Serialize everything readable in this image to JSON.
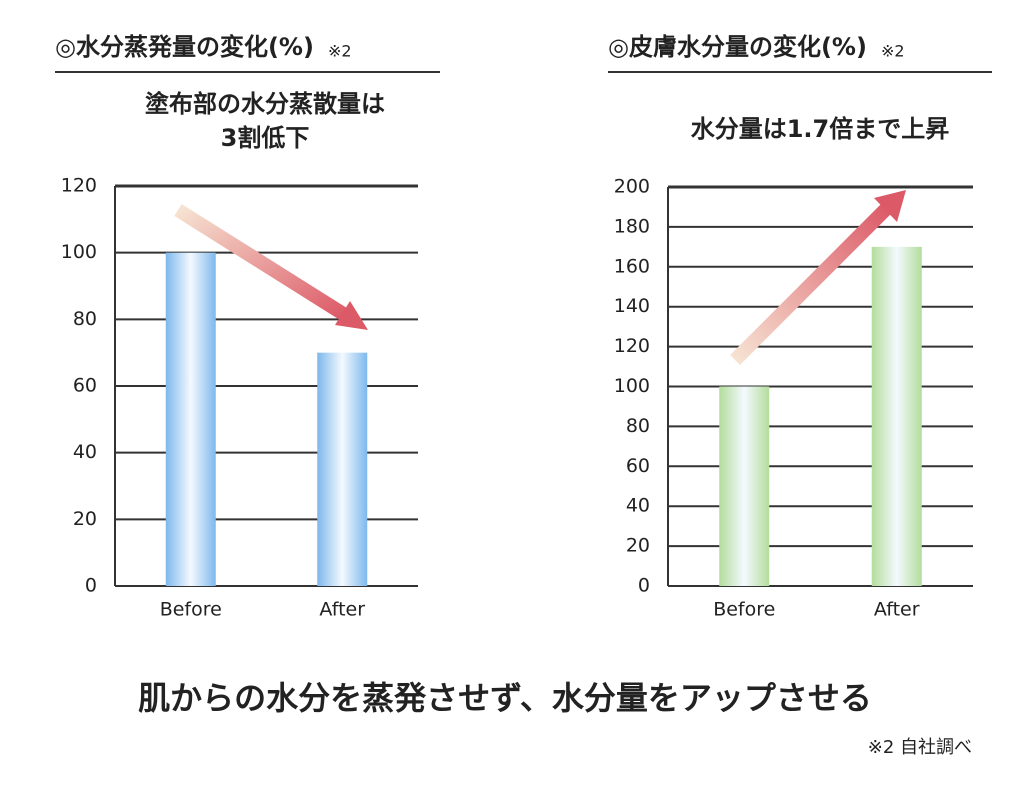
{
  "chart_data": [
    {
      "type": "bar",
      "title": "◎水分蒸発量の変化(%)",
      "title_note": "※2",
      "annotation": [
        "塗布部の水分蒸散量は",
        "3割低下"
      ],
      "categories": [
        "Before",
        "After"
      ],
      "values": [
        100,
        70
      ],
      "color": "#7db8ec",
      "ylim": [
        0,
        120
      ],
      "yticks": [
        0,
        20,
        40,
        60,
        80,
        100,
        120
      ],
      "grid": true
    },
    {
      "type": "bar",
      "title": "◎皮膚水分量の変化(%)",
      "title_note": "※2",
      "annotation": [
        "水分量は1.7倍まで上昇"
      ],
      "categories": [
        "Before",
        "After"
      ],
      "values": [
        100,
        170
      ],
      "color": "#b3dd9c",
      "ylim": [
        0,
        200
      ],
      "yticks": [
        0,
        20,
        40,
        60,
        80,
        100,
        120,
        140,
        160,
        180,
        200
      ],
      "grid": true
    }
  ],
  "caption": "肌からの水分を蒸発させず、水分量をアップさせる",
  "footnote": "※2 自社調べ"
}
